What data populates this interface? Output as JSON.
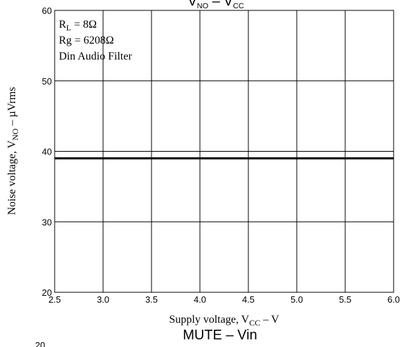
{
  "chart_data": {
    "type": "line",
    "title_top": "VNO – VCC",
    "title_top_parts": {
      "v": "V",
      "no": "NO",
      "dash": " – ",
      "v2": "V",
      "cc": "CC"
    },
    "next_title": "MUTE – Vin",
    "next_chart_partial_y_tick": "20",
    "x": [
      2.5,
      6.0
    ],
    "series": [
      {
        "values": [
          39,
          39
        ]
      }
    ],
    "xlim": [
      2.5,
      6.0
    ],
    "ylim": [
      20,
      60
    ],
    "x_ticks": [
      "2.5",
      "3.0",
      "3.5",
      "4.0",
      "4.5",
      "5.0",
      "5.5",
      "6.0"
    ],
    "y_ticks": [
      "20",
      "30",
      "40",
      "50",
      "60"
    ],
    "grid": true,
    "xlabel": {
      "pre": "Supply voltage, V",
      "sub": "CC",
      "post": " – V"
    },
    "ylabel": {
      "pre": "Noise voltage, V",
      "sub": "NO",
      "post": " – µVrms"
    },
    "annotation": {
      "rl_main": "R",
      "rl_sub": "L",
      "rl_rest": " = 8Ω",
      "rg": "Rg = 6208Ω",
      "filter": "Din Audio Filter"
    }
  }
}
